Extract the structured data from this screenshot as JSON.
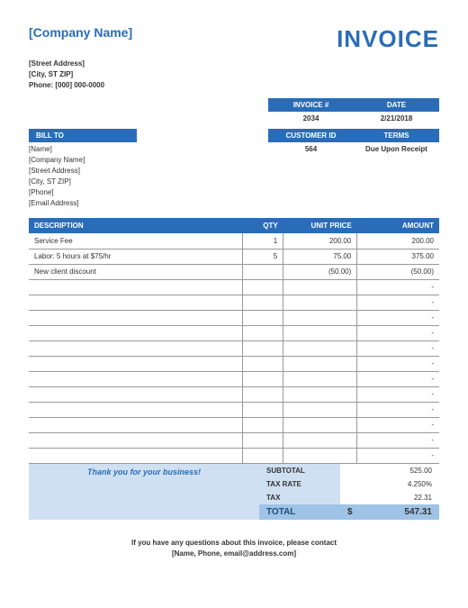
{
  "company": {
    "name": "[Company Name]",
    "street": "[Street Address]",
    "city": "[City, ST  ZIP]",
    "phone": "Phone: [000] 000-0000"
  },
  "title": "INVOICE",
  "meta": {
    "invoice_label": "INVOICE #",
    "date_label": "DATE",
    "invoice_number": "2034",
    "date": "2/21/2018",
    "customer_id_label": "CUSTOMER ID",
    "terms_label": "TERMS",
    "customer_id": "564",
    "terms": "Due Upon Receipt"
  },
  "billto": {
    "label": "BILL TO",
    "name": "[Name]",
    "company": "[Company Name]",
    "street": "[Street Address]",
    "city": "[City, ST  ZIP]",
    "phone": "[Phone]",
    "email": "[Email Address]"
  },
  "items": {
    "headers": {
      "desc": "DESCRIPTION",
      "qty": "QTY",
      "unit": "UNIT PRICE",
      "amount": "AMOUNT"
    },
    "rows": [
      {
        "desc": "Service Fee",
        "qty": "1",
        "unit": "200.00",
        "amount": "200.00"
      },
      {
        "desc": "Labor: 5 hours at $75/hr",
        "qty": "5",
        "unit": "75.00",
        "amount": "375.00"
      },
      {
        "desc": "New client discount",
        "qty": "",
        "unit": "(50.00)",
        "amount": "(50.00)"
      },
      {
        "desc": "",
        "qty": "",
        "unit": "",
        "amount": "-"
      },
      {
        "desc": "",
        "qty": "",
        "unit": "",
        "amount": "-"
      },
      {
        "desc": "",
        "qty": "",
        "unit": "",
        "amount": "-"
      },
      {
        "desc": "",
        "qty": "",
        "unit": "",
        "amount": "-"
      },
      {
        "desc": "",
        "qty": "",
        "unit": "",
        "amount": "-"
      },
      {
        "desc": "",
        "qty": "",
        "unit": "",
        "amount": "-"
      },
      {
        "desc": "",
        "qty": "",
        "unit": "",
        "amount": "-"
      },
      {
        "desc": "",
        "qty": "",
        "unit": "",
        "amount": "-"
      },
      {
        "desc": "",
        "qty": "",
        "unit": "",
        "amount": "-"
      },
      {
        "desc": "",
        "qty": "",
        "unit": "",
        "amount": "-"
      },
      {
        "desc": "",
        "qty": "",
        "unit": "",
        "amount": "-"
      },
      {
        "desc": "",
        "qty": "",
        "unit": "",
        "amount": "-"
      }
    ]
  },
  "thanks": "Thank you for your business!",
  "totals": {
    "subtotal_label": "SUBTOTAL",
    "subtotal": "525.00",
    "taxrate_label": "TAX RATE",
    "taxrate": "4.250%",
    "tax_label": "TAX",
    "tax": "22.31",
    "total_label": "TOTAL",
    "currency": "$",
    "total": "547.31"
  },
  "contact": {
    "line1": "If you have any questions about this invoice, please contact",
    "line2": "[Name, Phone, email@address.com]"
  },
  "style": {
    "primary_color": "#2a6cb8",
    "light_blue": "#cfe0f2",
    "mid_blue": "#9fc3e6",
    "border_color": "#999999"
  }
}
